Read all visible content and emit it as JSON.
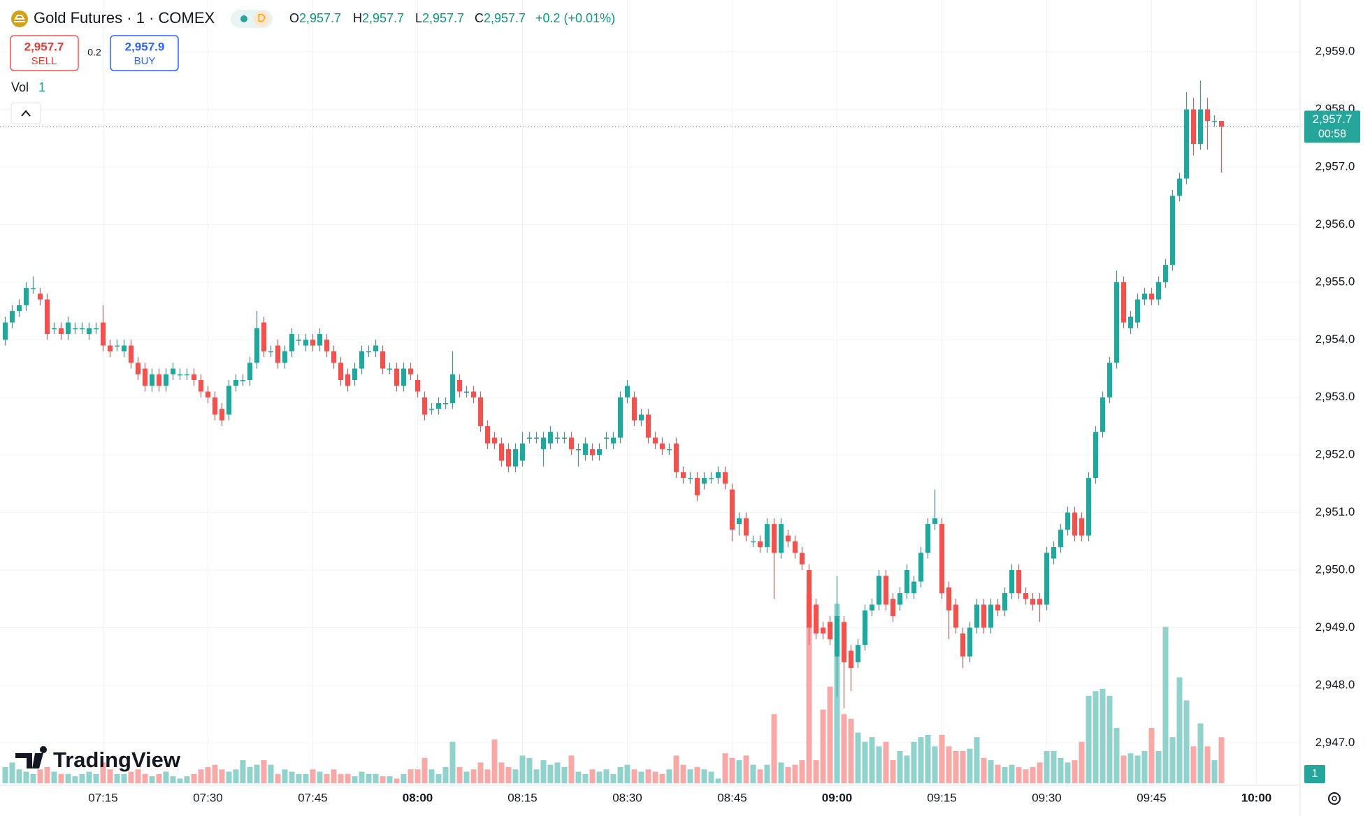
{
  "header": {
    "title": "Gold Futures · 1 · COMEX",
    "badge": "D",
    "ohlc": [
      {
        "key": "O",
        "value": "2,957.7"
      },
      {
        "key": "H",
        "value": "2,957.7"
      },
      {
        "key": "L",
        "value": "2,957.7"
      },
      {
        "key": "C",
        "value": "2,957.7"
      }
    ],
    "change": "+0.2 (+0.01%)"
  },
  "trade": {
    "sell_price": "2,957.7",
    "sell_label": "SELL",
    "spread": "0.2",
    "buy_price": "2,957.9",
    "buy_label": "BUY"
  },
  "volume_label": "Vol",
  "price_tag": {
    "price": "2,957.7",
    "countdown": "00:58"
  },
  "watermark": "TradingView",
  "chart_data": {
    "type": "candlestick",
    "up_color": "#26a69a",
    "down_color": "#ef5350",
    "volume_up_color": "#92d2cc",
    "volume_down_color": "#f7a9a7",
    "grid": true,
    "ylim": [
      2946.3,
      2959.9
    ],
    "yticks": [
      {
        "value": 2947,
        "label": "2,947.0"
      },
      {
        "value": 2948,
        "label": "2,948.0"
      },
      {
        "value": 2949,
        "label": "2,949.0"
      },
      {
        "value": 2950,
        "label": "2,950.0"
      },
      {
        "value": 2951,
        "label": "2,951.0"
      },
      {
        "value": 2952,
        "label": "2,952.0"
      },
      {
        "value": 2953,
        "label": "2,953.0"
      },
      {
        "value": 2954,
        "label": "2,954.0"
      },
      {
        "value": 2955,
        "label": "2,955.0"
      },
      {
        "value": 2956,
        "label": "2,956.0"
      },
      {
        "value": 2957,
        "label": "2,957.0"
      },
      {
        "value": 2958,
        "label": "2,958.0"
      },
      {
        "value": 2959,
        "label": "2,959.0"
      }
    ],
    "xticks": [
      "07:15",
      "07:30",
      "07:45",
      "08:00",
      "08:15",
      "08:30",
      "08:45",
      "09:00",
      "09:15",
      "09:30",
      "09:45",
      "10:00"
    ],
    "time": [
      "07:01",
      "07:02",
      "07:03",
      "07:04",
      "07:05",
      "07:06",
      "07:07",
      "07:08",
      "07:09",
      "07:10",
      "07:11",
      "07:12",
      "07:13",
      "07:14",
      "07:15",
      "07:16",
      "07:17",
      "07:18",
      "07:19",
      "07:20",
      "07:21",
      "07:22",
      "07:23",
      "07:24",
      "07:25",
      "07:26",
      "07:27",
      "07:28",
      "07:29",
      "07:30",
      "07:31",
      "07:32",
      "07:33",
      "07:34",
      "07:35",
      "07:36",
      "07:37",
      "07:38",
      "07:39",
      "07:40",
      "07:41",
      "07:42",
      "07:43",
      "07:44",
      "07:45",
      "07:46",
      "07:47",
      "07:48",
      "07:49",
      "07:50",
      "07:51",
      "07:52",
      "07:53",
      "07:54",
      "07:55",
      "07:56",
      "07:57",
      "07:58",
      "07:59",
      "08:00",
      "08:01",
      "08:02",
      "08:03",
      "08:04",
      "08:05",
      "08:06",
      "08:07",
      "08:08",
      "08:09",
      "08:10",
      "08:11",
      "08:12",
      "08:13",
      "08:14",
      "08:15",
      "08:16",
      "08:17",
      "08:18",
      "08:19",
      "08:20",
      "08:21",
      "08:22",
      "08:23",
      "08:24",
      "08:25",
      "08:26",
      "08:27",
      "08:28",
      "08:29",
      "08:30",
      "08:31",
      "08:32",
      "08:33",
      "08:34",
      "08:35",
      "08:36",
      "08:37",
      "08:38",
      "08:39",
      "08:40",
      "08:41",
      "08:42",
      "08:43",
      "08:44",
      "08:45",
      "08:46",
      "08:47",
      "08:48",
      "08:49",
      "08:50",
      "08:51",
      "08:52",
      "08:53",
      "08:54",
      "08:55",
      "08:56",
      "08:57",
      "08:58",
      "08:59",
      "09:00",
      "09:01",
      "09:02",
      "09:03",
      "09:04",
      "09:05",
      "09:06",
      "09:07",
      "09:08",
      "09:09",
      "09:10",
      "09:11",
      "09:12",
      "09:13",
      "09:14",
      "09:15",
      "09:16",
      "09:17",
      "09:18",
      "09:19",
      "09:20",
      "09:21",
      "09:22",
      "09:23",
      "09:24",
      "09:25",
      "09:26",
      "09:27",
      "09:28",
      "09:29",
      "09:30",
      "09:31",
      "09:32",
      "09:33",
      "09:34",
      "09:35",
      "09:36",
      "09:37",
      "09:38",
      "09:39",
      "09:40",
      "09:41",
      "09:42",
      "09:43",
      "09:44",
      "09:45",
      "09:46",
      "09:47",
      "09:48",
      "09:49",
      "09:50",
      "09:51",
      "09:52",
      "09:53",
      "09:54",
      "09:55"
    ],
    "open": [
      2954.0,
      2954.3,
      2954.5,
      2954.6,
      2954.9,
      2954.8,
      2954.7,
      2954.2,
      2954.2,
      2954.1,
      2954.2,
      2954.2,
      2954.1,
      2954.2,
      2954.3,
      2953.9,
      2953.9,
      2953.8,
      2953.9,
      2953.6,
      2953.5,
      2953.2,
      2953.4,
      2953.2,
      2953.4,
      2953.4,
      2953.4,
      2953.4,
      2953.3,
      2953.1,
      2953.0,
      2952.8,
      2952.7,
      2953.2,
      2953.3,
      2953.3,
      2953.6,
      2954.3,
      2953.8,
      2953.9,
      2953.6,
      2953.8,
      2954.0,
      2953.9,
      2954.0,
      2953.9,
      2954.0,
      2953.8,
      2953.6,
      2953.4,
      2953.3,
      2953.5,
      2953.8,
      2953.8,
      2953.8,
      2953.5,
      2953.5,
      2953.2,
      2953.5,
      2953.3,
      2953.0,
      2952.8,
      2952.8,
      2952.9,
      2952.9,
      2953.3,
      2953.1,
      2953.1,
      2953.0,
      2952.5,
      2952.3,
      2952.2,
      2952.1,
      2951.8,
      2951.9,
      2952.3,
      2952.3,
      2952.1,
      2952.2,
      2952.3,
      2952.3,
      2952.3,
      2952.1,
      2952.0,
      2952.1,
      2952.0,
      2952.3,
      2952.2,
      2952.3,
      2953.0,
      2953.0,
      2952.6,
      2952.7,
      2952.3,
      2952.2,
      2952.1,
      2952.2,
      2951.7,
      2951.6,
      2951.6,
      2951.5,
      2951.6,
      2951.6,
      2951.7,
      2951.4,
      2950.8,
      2950.9,
      2950.5,
      2950.5,
      2950.4,
      2950.8,
      2950.3,
      2950.6,
      2950.5,
      2950.3,
      2950.0,
      2949.4,
      2949.0,
      2949.1,
      2948.5,
      2949.1,
      2948.6,
      2948.4,
      2948.7,
      2949.3,
      2949.4,
      2949.9,
      2949.5,
      2949.4,
      2949.6,
      2949.6,
      2949.8,
      2950.3,
      2950.8,
      2950.8,
      2949.7,
      2949.4,
      2948.9,
      2948.5,
      2949.0,
      2949.4,
      2949.0,
      2949.4,
      2949.3,
      2949.6,
      2950.0,
      2949.6,
      2949.5,
      2949.5,
      2949.4,
      2950.2,
      2950.4,
      2950.7,
      2951.0,
      2950.9,
      2950.6,
      2951.6,
      2952.4,
      2953.0,
      2953.6,
      2955.0,
      2954.2,
      2954.3,
      2954.7,
      2954.8,
      2954.7,
      2955.0,
      2955.3,
      2956.5,
      2956.8,
      2958.0,
      2957.4,
      2958.0,
      2957.8,
      2957.8
    ],
    "high": [
      2954.4,
      2954.6,
      2954.7,
      2955.0,
      2955.1,
      2954.9,
      2954.8,
      2954.3,
      2954.3,
      2954.4,
      2954.3,
      2954.3,
      2954.3,
      2954.3,
      2954.6,
      2954.0,
      2954.0,
      2954.0,
      2954.0,
      2953.7,
      2953.6,
      2953.5,
      2953.5,
      2953.5,
      2953.6,
      2953.5,
      2953.5,
      2953.5,
      2953.4,
      2953.2,
      2953.1,
      2952.9,
      2953.3,
      2953.4,
      2953.4,
      2953.7,
      2954.5,
      2954.4,
      2953.9,
      2954.0,
      2953.9,
      2954.2,
      2954.1,
      2954.1,
      2954.1,
      2954.2,
      2954.1,
      2953.9,
      2953.7,
      2953.5,
      2953.6,
      2953.9,
      2953.9,
      2954.0,
      2953.9,
      2953.6,
      2953.6,
      2953.6,
      2953.6,
      2953.4,
      2953.1,
      2952.9,
      2953.0,
      2953.0,
      2953.8,
      2953.4,
      2953.2,
      2953.2,
      2953.1,
      2952.6,
      2952.4,
      2952.3,
      2952.2,
      2952.2,
      2952.4,
      2952.4,
      2952.4,
      2952.4,
      2952.5,
      2952.4,
      2952.4,
      2952.4,
      2952.2,
      2952.3,
      2952.2,
      2952.2,
      2952.4,
      2952.4,
      2953.1,
      2953.3,
      2953.1,
      2952.8,
      2952.8,
      2952.4,
      2952.3,
      2952.2,
      2952.3,
      2951.8,
      2951.7,
      2951.7,
      2951.7,
      2951.7,
      2951.8,
      2951.8,
      2951.5,
      2951.0,
      2951.0,
      2950.6,
      2950.6,
      2950.9,
      2950.9,
      2950.9,
      2950.7,
      2950.6,
      2950.4,
      2950.1,
      2949.5,
      2949.1,
      2949.2,
      2949.9,
      2949.2,
      2948.7,
      2948.8,
      2949.4,
      2949.5,
      2950.0,
      2950.0,
      2949.6,
      2949.7,
      2950.1,
      2949.9,
      2950.4,
      2950.9,
      2951.4,
      2950.9,
      2949.8,
      2949.5,
      2949.0,
      2949.1,
      2949.5,
      2949.5,
      2949.5,
      2949.5,
      2949.7,
      2950.1,
      2950.1,
      2949.7,
      2949.6,
      2949.6,
      2950.4,
      2950.5,
      2950.8,
      2951.1,
      2951.1,
      2951.0,
      2951.7,
      2952.5,
      2953.1,
      2953.7,
      2955.2,
      2955.1,
      2954.5,
      2954.8,
      2954.9,
      2954.9,
      2955.1,
      2955.4,
      2956.6,
      2956.9,
      2958.3,
      2958.2,
      2958.5,
      2958.2,
      2957.9,
      2957.8
    ],
    "low": [
      2953.9,
      2954.2,
      2954.4,
      2954.5,
      2954.8,
      2954.6,
      2954.0,
      2954.1,
      2954.0,
      2954.0,
      2954.1,
      2954.1,
      2954.0,
      2954.1,
      2953.8,
      2953.7,
      2953.8,
      2953.7,
      2953.5,
      2953.3,
      2953.1,
      2953.1,
      2953.1,
      2953.1,
      2953.3,
      2953.3,
      2953.3,
      2953.2,
      2953.0,
      2952.9,
      2952.6,
      2952.5,
      2952.6,
      2953.1,
      2953.2,
      2953.2,
      2953.5,
      2953.7,
      2953.7,
      2953.5,
      2953.5,
      2953.7,
      2953.9,
      2953.8,
      2953.8,
      2953.8,
      2953.7,
      2953.5,
      2953.2,
      2953.1,
      2953.2,
      2953.4,
      2953.7,
      2953.7,
      2953.4,
      2953.4,
      2953.1,
      2953.1,
      2953.3,
      2953.0,
      2952.6,
      2952.7,
      2952.7,
      2952.8,
      2952.8,
      2953.0,
      2953.0,
      2952.9,
      2952.4,
      2952.1,
      2952.1,
      2951.8,
      2951.7,
      2951.7,
      2951.8,
      2952.2,
      2952.2,
      2951.8,
      2952.1,
      2952.2,
      2952.2,
      2952.0,
      2951.8,
      2951.9,
      2951.9,
      2951.9,
      2952.1,
      2952.1,
      2952.2,
      2952.9,
      2952.5,
      2952.5,
      2952.2,
      2952.1,
      2952.0,
      2952.0,
      2951.6,
      2951.5,
      2951.5,
      2951.2,
      2951.4,
      2951.5,
      2951.5,
      2951.4,
      2950.5,
      2950.6,
      2950.5,
      2950.4,
      2950.3,
      2950.3,
      2949.5,
      2950.2,
      2950.4,
      2950.2,
      2950.0,
      2948.7,
      2948.8,
      2948.8,
      2948.7,
      2947.8,
      2947.6,
      2947.9,
      2948.3,
      2948.6,
      2949.2,
      2949.3,
      2949.3,
      2949.1,
      2949.3,
      2949.5,
      2949.5,
      2949.7,
      2950.2,
      2950.7,
      2949.5,
      2948.8,
      2948.9,
      2948.3,
      2948.4,
      2948.9,
      2948.9,
      2948.9,
      2949.2,
      2949.2,
      2949.5,
      2949.5,
      2949.4,
      2949.3,
      2949.1,
      2949.3,
      2950.1,
      2950.3,
      2950.6,
      2950.5,
      2950.5,
      2950.5,
      2951.5,
      2952.3,
      2952.9,
      2953.5,
      2954.2,
      2954.1,
      2954.2,
      2954.6,
      2954.6,
      2954.6,
      2954.9,
      2955.2,
      2956.4,
      2956.7,
      2957.2,
      2957.3,
      2957.3,
      2957.7,
      2956.9
    ],
    "close": [
      2954.3,
      2954.5,
      2954.6,
      2954.9,
      2954.9,
      2954.7,
      2954.1,
      2954.2,
      2954.1,
      2954.3,
      2954.2,
      2954.2,
      2954.2,
      2954.2,
      2953.9,
      2953.8,
      2953.9,
      2953.9,
      2953.6,
      2953.4,
      2953.2,
      2953.4,
      2953.2,
      2953.4,
      2953.5,
      2953.4,
      2953.4,
      2953.3,
      2953.1,
      2953.0,
      2952.7,
      2952.6,
      2953.2,
      2953.3,
      2953.3,
      2953.6,
      2954.2,
      2953.8,
      2953.8,
      2953.6,
      2953.8,
      2954.1,
      2954.0,
      2954.0,
      2953.9,
      2954.1,
      2953.8,
      2953.6,
      2953.3,
      2953.2,
      2953.5,
      2953.8,
      2953.8,
      2953.9,
      2953.5,
      2953.5,
      2953.2,
      2953.5,
      2953.4,
      2953.1,
      2952.7,
      2952.8,
      2952.9,
      2952.9,
      2953.4,
      2953.1,
      2953.1,
      2953.0,
      2952.5,
      2952.2,
      2952.2,
      2951.9,
      2951.8,
      2952.1,
      2952.2,
      2952.3,
      2952.3,
      2952.3,
      2952.4,
      2952.3,
      2952.3,
      2952.1,
      2952.1,
      2952.2,
      2952.0,
      2952.1,
      2952.3,
      2952.3,
      2953.0,
      2953.2,
      2952.6,
      2952.7,
      2952.3,
      2952.2,
      2952.1,
      2952.1,
      2951.7,
      2951.6,
      2951.6,
      2951.3,
      2951.6,
      2951.6,
      2951.7,
      2951.5,
      2950.7,
      2950.9,
      2950.6,
      2950.5,
      2950.4,
      2950.8,
      2950.3,
      2950.8,
      2950.5,
      2950.3,
      2950.1,
      2949.0,
      2948.9,
      2948.9,
      2948.8,
      2949.2,
      2948.4,
      2948.3,
      2948.7,
      2949.3,
      2949.4,
      2949.9,
      2949.4,
      2949.2,
      2949.6,
      2950.0,
      2949.8,
      2950.3,
      2950.8,
      2950.9,
      2949.6,
      2949.3,
      2949.0,
      2948.5,
      2949.0,
      2949.4,
      2949.0,
      2949.4,
      2949.3,
      2949.6,
      2950.0,
      2949.6,
      2949.5,
      2949.4,
      2949.4,
      2950.3,
      2950.4,
      2950.7,
      2951.0,
      2950.6,
      2950.6,
      2951.6,
      2952.4,
      2953.0,
      2953.6,
      2955.0,
      2954.3,
      2954.4,
      2954.7,
      2954.8,
      2954.7,
      2955.0,
      2955.3,
      2956.5,
      2956.8,
      2958.0,
      2957.4,
      2958.0,
      2957.8,
      2957.8,
      2957.7
    ],
    "volume": [
      0.35,
      0.45,
      0.3,
      0.25,
      0.2,
      0.3,
      0.35,
      0.25,
      0.2,
      0.2,
      0.15,
      0.2,
      0.25,
      0.2,
      0.45,
      0.3,
      0.2,
      0.2,
      0.25,
      0.3,
      0.2,
      0.15,
      0.2,
      0.25,
      0.15,
      0.1,
      0.15,
      0.2,
      0.3,
      0.35,
      0.4,
      0.3,
      0.25,
      0.3,
      0.5,
      0.35,
      0.4,
      0.5,
      0.4,
      0.2,
      0.3,
      0.25,
      0.2,
      0.2,
      0.3,
      0.25,
      0.2,
      0.3,
      0.2,
      0.2,
      0.15,
      0.25,
      0.2,
      0.2,
      0.15,
      0.15,
      0.1,
      0.2,
      0.3,
      0.3,
      0.55,
      0.3,
      0.2,
      0.35,
      0.9,
      0.35,
      0.25,
      0.3,
      0.45,
      0.3,
      0.95,
      0.45,
      0.35,
      0.3,
      0.6,
      0.55,
      0.3,
      0.5,
      0.4,
      0.45,
      0.35,
      0.6,
      0.25,
      0.2,
      0.3,
      0.25,
      0.3,
      0.2,
      0.35,
      0.4,
      0.3,
      0.25,
      0.3,
      0.25,
      0.2,
      0.3,
      0.6,
      0.4,
      0.3,
      0.35,
      0.3,
      0.25,
      0.1,
      0.65,
      0.55,
      0.5,
      0.6,
      0.4,
      0.3,
      0.4,
      1.5,
      0.45,
      0.35,
      0.4,
      0.5,
      4.1,
      0.5,
      1.6,
      2.1,
      3.9,
      1.5,
      1.4,
      1.1,
      0.9,
      1.0,
      0.8,
      0.9,
      0.5,
      0.7,
      0.6,
      0.9,
      1.0,
      1.05,
      0.8,
      1.05,
      0.8,
      0.7,
      0.7,
      0.75,
      1.0,
      0.55,
      0.5,
      0.4,
      0.35,
      0.4,
      0.35,
      0.3,
      0.35,
      0.45,
      0.7,
      0.7,
      0.55,
      0.45,
      0.5,
      0.9,
      1.9,
      2.0,
      2.05,
      1.9,
      1.2,
      0.6,
      0.65,
      0.6,
      0.7,
      1.2,
      0.7,
      3.4,
      1.0,
      2.3,
      1.8,
      0.8,
      1.3,
      0.8,
      0.5,
      1.0
    ]
  }
}
